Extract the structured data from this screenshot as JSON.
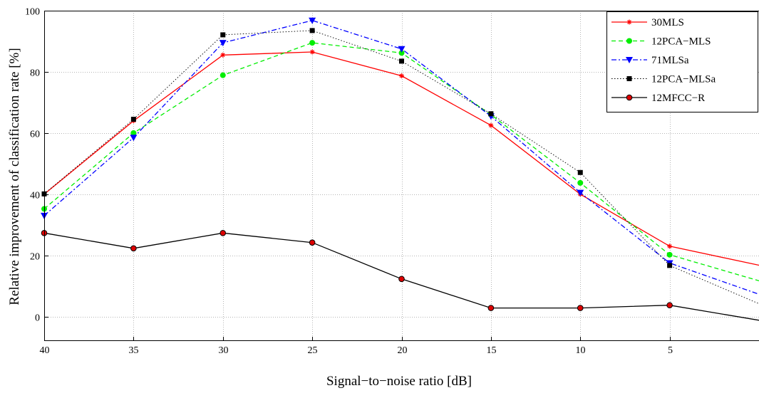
{
  "chart_data": {
    "type": "line",
    "title": "",
    "xlabel": "Signal−to−noise ratio [dB]",
    "ylabel": "Relative improvement of classification rate [%]",
    "x": [
      40,
      35,
      30,
      25,
      20,
      15,
      10,
      5,
      0
    ],
    "x_tick_labels": [
      "40",
      "35",
      "30",
      "25",
      "20",
      "15",
      "10",
      "5",
      ""
    ],
    "xlim": [
      40,
      0
    ],
    "ylim": [
      -8,
      100
    ],
    "y_ticks": [
      0,
      20,
      40,
      60,
      80,
      100
    ],
    "y_tick_labels": [
      "0",
      "20",
      "40",
      "60",
      "80",
      "100"
    ],
    "grid": true,
    "legend_position": "top-right",
    "series": [
      {
        "name": "30MLS",
        "color": "#ff0000",
        "dash": "solid",
        "marker": "asterisk",
        "values": [
          40,
          64,
          85.5,
          86.5,
          78.7,
          62.5,
          40,
          23,
          16.8
        ]
      },
      {
        "name": "12PCA−MLS",
        "color": "#00ee00",
        "dash": "dashed",
        "marker": "circle",
        "values": [
          35.2,
          60,
          78.9,
          89.5,
          86.2,
          66,
          43.7,
          20.2,
          11.7
        ]
      },
      {
        "name": "71MLSa",
        "color": "#0000ff",
        "dash": "dashdot",
        "marker": "triangle-down",
        "values": [
          33,
          58.5,
          89.5,
          96.8,
          87.5,
          65.5,
          40.5,
          17.5,
          7.3
        ]
      },
      {
        "name": "12PCA−MLSa",
        "color": "#000000",
        "dash": "dotted",
        "marker": "square",
        "values": [
          40.1,
          64.5,
          92.1,
          93.5,
          83.5,
          66.3,
          47.1,
          16.7,
          4.2
        ]
      },
      {
        "name": "12MFCC−R",
        "color": "#000000",
        "dash": "solid",
        "marker": "circle-filled",
        "marker_fill": "#dd0000",
        "values": [
          27.3,
          22.3,
          27.3,
          24.2,
          12.3,
          2.8,
          2.8,
          3.7,
          -1.2
        ]
      }
    ]
  }
}
